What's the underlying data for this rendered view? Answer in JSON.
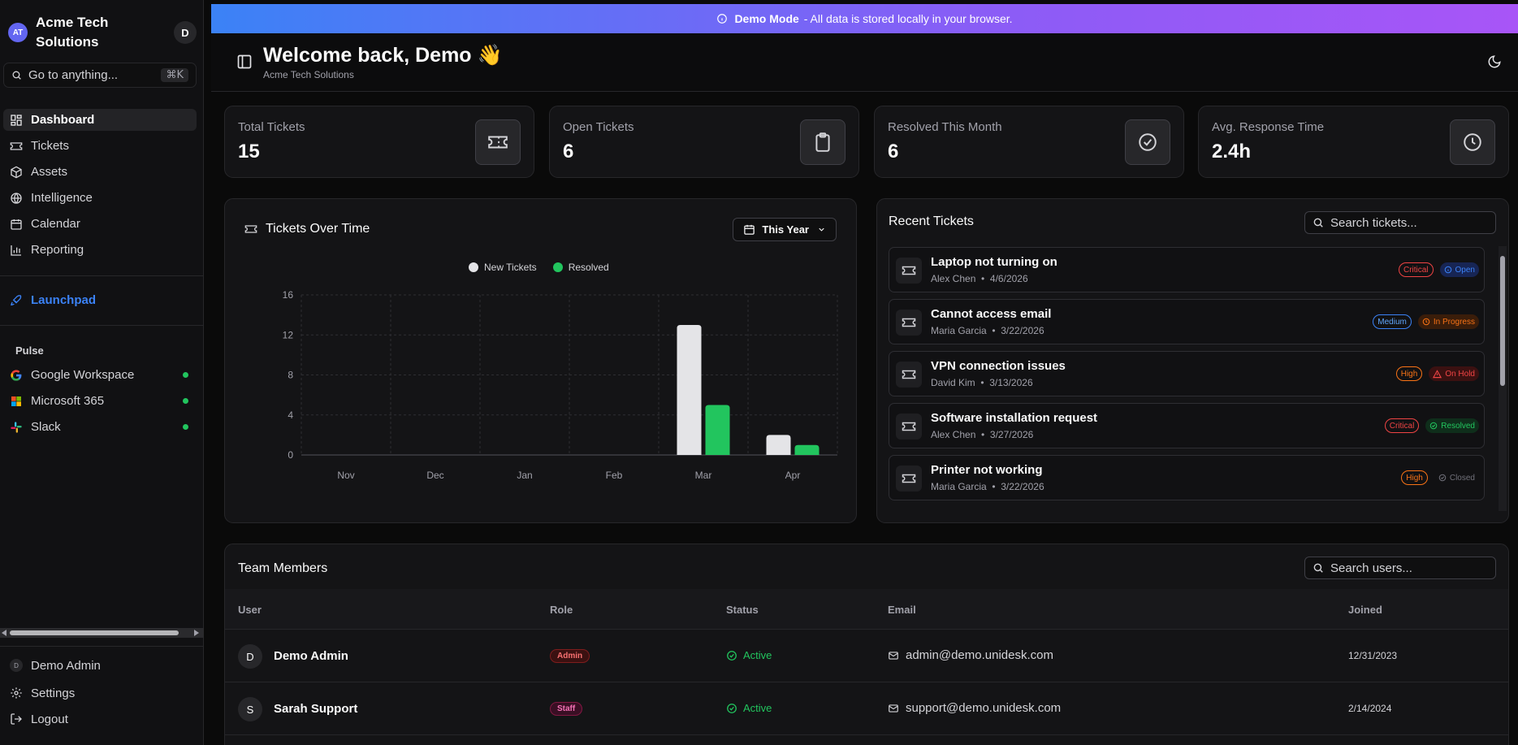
{
  "sidebar": {
    "brand_initials": "AT",
    "brand_name": "Acme Tech Solutions",
    "user_initial": "D",
    "goto_placeholder": "Go to anything...",
    "goto_shortcut": "⌘K",
    "nav": [
      {
        "label": "Dashboard",
        "icon": "dashboard-icon",
        "active": true
      },
      {
        "label": "Tickets",
        "icon": "ticket-icon"
      },
      {
        "label": "Assets",
        "icon": "box-icon"
      },
      {
        "label": "Intelligence",
        "icon": "globe-icon"
      },
      {
        "label": "Calendar",
        "icon": "calendar-icon"
      },
      {
        "label": "Reporting",
        "icon": "bar-chart-icon"
      }
    ],
    "launchpad": "Launchpad",
    "pulse_title": "Pulse",
    "pulse": [
      {
        "label": "Google Workspace",
        "status": "online"
      },
      {
        "label": "Microsoft 365",
        "status": "online"
      },
      {
        "label": "Slack",
        "status": "online"
      }
    ],
    "footer": {
      "user_initial": "D",
      "user": "Demo Admin",
      "settings": "Settings",
      "logout": "Logout"
    }
  },
  "banner": {
    "title": "Demo Mode",
    "text": "- All data is stored locally in your browser."
  },
  "header": {
    "title": "Welcome back, Demo 👋",
    "subtitle": "Acme Tech Solutions"
  },
  "stats": [
    {
      "label": "Total Tickets",
      "value": "15",
      "icon": "ticket-icon"
    },
    {
      "label": "Open Tickets",
      "value": "6",
      "icon": "clipboard-icon"
    },
    {
      "label": "Resolved This Month",
      "value": "6",
      "icon": "check-circle-icon"
    },
    {
      "label": "Avg. Response Time",
      "value": "2.4h",
      "icon": "clock-icon"
    }
  ],
  "chart_panel": {
    "title": "Tickets Over Time",
    "range": "This Year"
  },
  "chart_data": {
    "type": "bar",
    "title": "Tickets Over Time",
    "categories": [
      "Nov",
      "Dec",
      "Jan",
      "Feb",
      "Mar",
      "Apr"
    ],
    "series": [
      {
        "name": "New Tickets",
        "values": [
          0,
          0,
          0,
          0,
          13,
          2
        ],
        "color": "#e4e4e7"
      },
      {
        "name": "Resolved",
        "values": [
          0,
          0,
          0,
          0,
          5,
          1
        ],
        "color": "#22c55e"
      }
    ],
    "yticks": [
      0,
      4,
      8,
      12,
      16
    ],
    "ylim": [
      0,
      16
    ],
    "grid": true,
    "legend": "top-center"
  },
  "recent": {
    "title": "Recent Tickets",
    "search_placeholder": "Search tickets...",
    "tickets": [
      {
        "title": "Laptop not turning on",
        "user": "Alex Chen",
        "date": "4/6/2026",
        "priority": "Critical",
        "status": "Open"
      },
      {
        "title": "Cannot access email",
        "user": "Maria Garcia",
        "date": "3/22/2026",
        "priority": "Medium",
        "status": "In Progress"
      },
      {
        "title": "VPN connection issues",
        "user": "David Kim",
        "date": "3/13/2026",
        "priority": "High",
        "status": "On Hold"
      },
      {
        "title": "Software installation request",
        "user": "Alex Chen",
        "date": "3/27/2026",
        "priority": "Critical",
        "status": "Resolved"
      },
      {
        "title": "Printer not working",
        "user": "Maria Garcia",
        "date": "3/22/2026",
        "priority": "High",
        "status": "Closed"
      }
    ]
  },
  "team": {
    "title": "Team Members",
    "search_placeholder": "Search users...",
    "columns": [
      "User",
      "Role",
      "Status",
      "Email",
      "Joined"
    ],
    "rows": [
      {
        "initial": "D",
        "name": "Demo Admin",
        "role": "Admin",
        "status": "Active",
        "email": "admin@demo.unidesk.com",
        "joined": "12/31/2023"
      },
      {
        "initial": "S",
        "name": "Sarah Support",
        "role": "Staff",
        "status": "Active",
        "email": "support@demo.unidesk.com",
        "joined": "2/14/2024"
      }
    ]
  },
  "colors": {
    "critical": "#ef4444",
    "high": "#f97316",
    "medium": "#3b82f6",
    "open": "#3b82f6",
    "in_progress": "#f97316",
    "on_hold": "#ef4444",
    "resolved": "#22c55e",
    "closed": "#71717a",
    "admin": "#f87171",
    "staff": "#f472b6"
  }
}
